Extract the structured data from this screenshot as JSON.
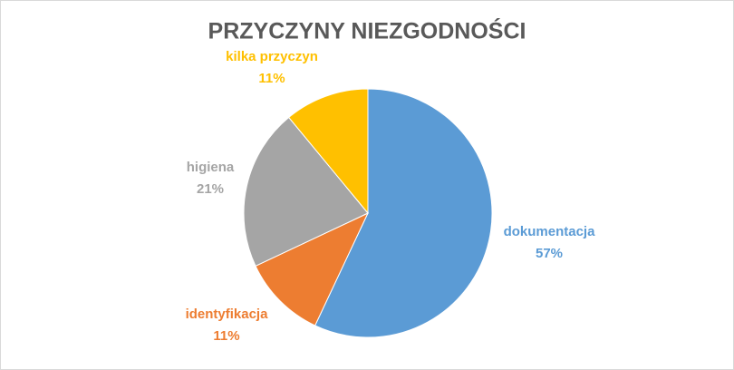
{
  "chart_data": {
    "type": "pie",
    "title": "PRZYCZYNY NIEZGODNOŚCI",
    "categories": [
      "dokumentacja",
      "identyfikacja",
      "higiena",
      "kilka przyczyn"
    ],
    "values": [
      57,
      11,
      21,
      11
    ],
    "value_labels": [
      "57%",
      "11%",
      "21%",
      "11%"
    ],
    "colors": [
      "#5b9bd5",
      "#ed7d31",
      "#a5a5a5",
      "#ffc000"
    ]
  }
}
